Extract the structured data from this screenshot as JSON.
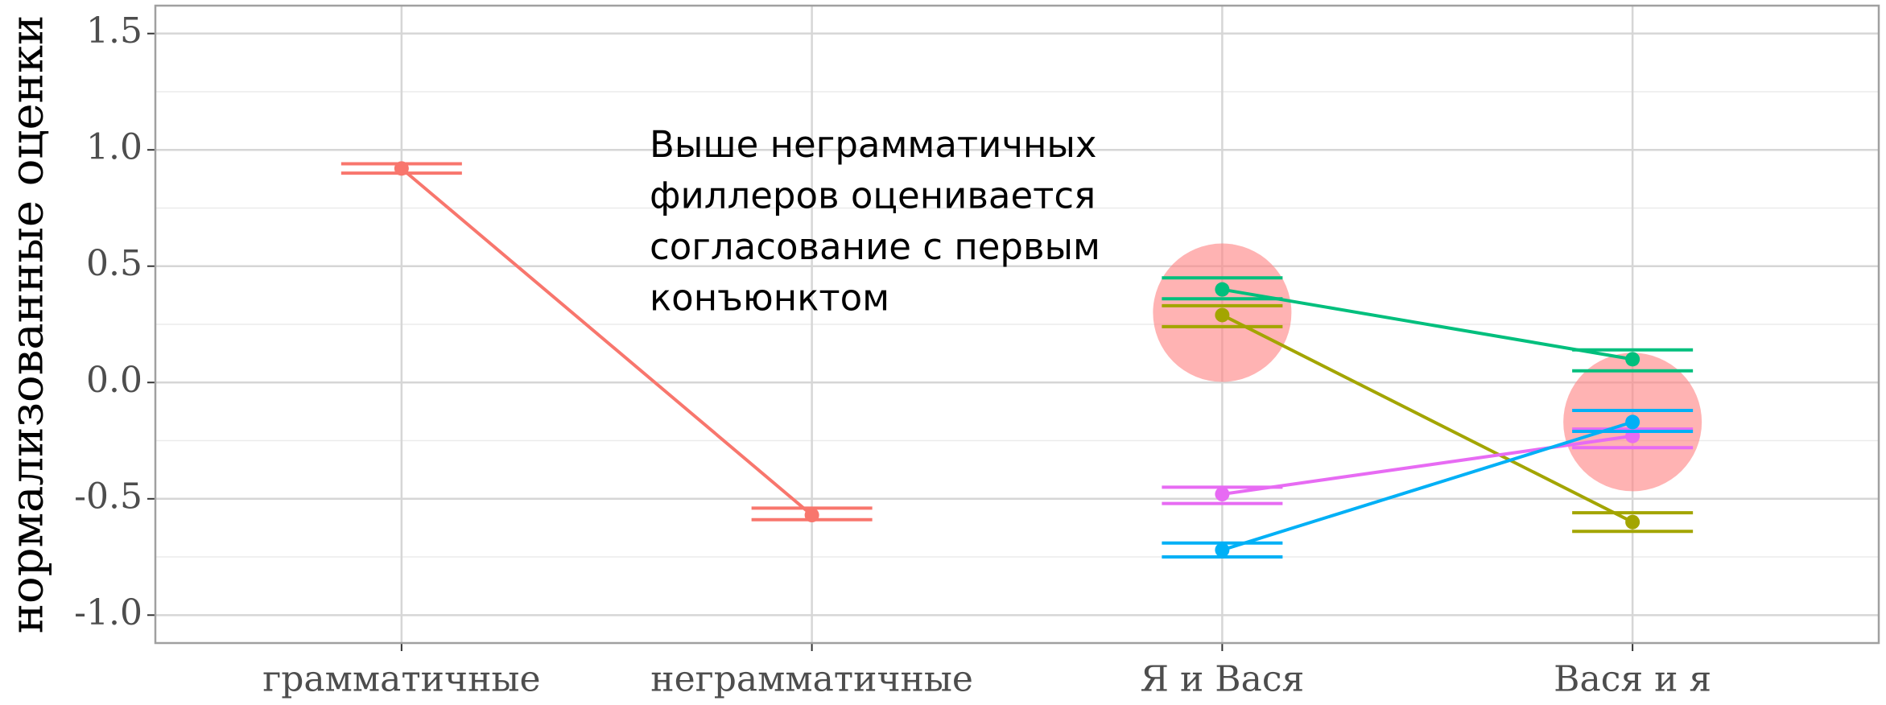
{
  "chart_data": {
    "type": "line",
    "ylabel": "нормализованные оценки",
    "categories": [
      "грамматичные",
      "неграмматичные",
      "Я и Вася",
      "Вася и я"
    ],
    "series": [
      {
        "color": "#F8766D",
        "values": [
          0.92,
          -0.57,
          null,
          null
        ],
        "ymin": [
          0.9,
          -0.59,
          null,
          null
        ],
        "ymax": [
          0.94,
          -0.54,
          null,
          null
        ]
      },
      {
        "color": "#00BF7D",
        "values": [
          null,
          null,
          0.4,
          0.1
        ],
        "ymin": [
          null,
          null,
          0.36,
          0.05
        ],
        "ymax": [
          null,
          null,
          0.45,
          0.14
        ]
      },
      {
        "color": "#A3A500",
        "values": [
          null,
          null,
          0.29,
          -0.6
        ],
        "ymin": [
          null,
          null,
          0.24,
          -0.64
        ],
        "ymax": [
          null,
          null,
          0.33,
          -0.56
        ]
      },
      {
        "color": "#E76BF3",
        "values": [
          null,
          null,
          -0.48,
          -0.23
        ],
        "ymin": [
          null,
          null,
          -0.52,
          -0.28
        ],
        "ymax": [
          null,
          null,
          -0.45,
          -0.2
        ]
      },
      {
        "color": "#00B0F6",
        "values": [
          null,
          null,
          -0.72,
          -0.17
        ],
        "ymin": [
          null,
          null,
          -0.75,
          -0.21
        ],
        "ymax": [
          null,
          null,
          -0.69,
          -0.12
        ]
      }
    ],
    "highlights": [
      {
        "category": "Я и Вася",
        "y": 0.3
      },
      {
        "category": "Вася и я",
        "y": -0.17
      }
    ],
    "highlight_color": "#FF8080",
    "annotation": [
      "Выше неграмматичных",
      "филлеров оценивается",
      "согласование с первым",
      "конъюнктом"
    ],
    "ylim": [
      -1.12,
      1.62
    ],
    "yticks": [
      {
        "value": -1,
        "label": "-1.0"
      },
      -0.5,
      {
        "value": 0,
        "label": "0.0"
      },
      0.5,
      {
        "value": 1,
        "label": "1.0"
      },
      1.5
    ],
    "yminorticks": [
      -0.75,
      -0.25,
      0.25,
      0.75,
      1.25
    ],
    "grid": true
  }
}
